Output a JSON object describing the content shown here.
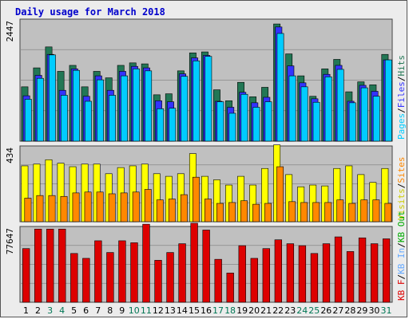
{
  "title": "Daily usage for March 2018",
  "colors": {
    "pages": "#00ccff",
    "files": "#3333ff",
    "hits": "#227755",
    "visits": "#ffff00",
    "sites": "#ff8800",
    "kbin": "#66aaff",
    "kbout": "#00aa00",
    "kbf": "#dd0000",
    "weekday": "#000000",
    "weekend": "#007755",
    "plot_bg": "#c0c0c0"
  },
  "chart_data": {
    "type": "bar",
    "categories": [
      "1",
      "2",
      "3",
      "4",
      "5",
      "6",
      "7",
      "8",
      "9",
      "10",
      "11",
      "12",
      "13",
      "14",
      "15",
      "16",
      "17",
      "18",
      "19",
      "20",
      "21",
      "22",
      "23",
      "24",
      "25",
      "26",
      "27",
      "28",
      "29",
      "30",
      "31"
    ],
    "weekend_days": [
      "3",
      "4",
      "10",
      "11",
      "17",
      "18",
      "24",
      "25",
      "31"
    ],
    "panels": [
      {
        "id": "hits-panel",
        "ymax_label": "2447",
        "ylim": [
          0,
          2447
        ],
        "legend": [
          {
            "text": "Pages",
            "color": "#00ccff"
          },
          {
            "text": "/",
            "color": "#000000"
          },
          {
            "text": "Files",
            "color": "#3333ff"
          },
          {
            "text": "/",
            "color": "#000000"
          },
          {
            "text": "Hits",
            "color": "#227755"
          }
        ],
        "series": [
          {
            "name": "Hits",
            "color": "#227755",
            "values": [
              1090,
              1470,
              1890,
              1400,
              1520,
              1090,
              1400,
              1270,
              1520,
              1570,
              1550,
              930,
              950,
              1410,
              1770,
              1790,
              1030,
              810,
              1180,
              890,
              1080,
              2350,
              1750,
              1310,
              900,
              1450,
              1640,
              990,
              1190,
              1130,
              1740
            ]
          },
          {
            "name": "Files",
            "color": "#3333ff",
            "values": [
              910,
              1320,
              1740,
              1020,
              1450,
              900,
              1310,
              1020,
              1400,
              1500,
              1470,
              810,
              790,
              1350,
              1670,
              1720,
              800,
              680,
              980,
              770,
              880,
              2290,
              1510,
              1170,
              850,
              1340,
              1520,
              800,
              1120,
              1000,
              1630
            ]
          },
          {
            "name": "Pages",
            "color": "#00ccff",
            "values": [
              840,
              1260,
              1730,
              920,
              1420,
              800,
              1230,
              920,
              1310,
              1450,
              1410,
              650,
              660,
              1300,
              1610,
              1700,
              790,
              560,
              940,
              680,
              790,
              2160,
              1310,
              1090,
              780,
              1290,
              1440,
              770,
              1070,
              900,
              1630
            ]
          }
        ]
      },
      {
        "id": "visits-panel",
        "ymax_label": "434",
        "ylim": [
          0,
          434
        ],
        "legend": [
          {
            "text": "Visits",
            "color": "#cccc00"
          },
          {
            "text": "/",
            "color": "#000000"
          },
          {
            "text": "Sites",
            "color": "#ff8800"
          }
        ],
        "series": [
          {
            "name": "Visits",
            "color": "#ffff00",
            "values": [
              320,
              330,
              355,
              335,
              315,
              330,
              330,
              275,
              310,
              320,
              330,
              275,
              260,
              275,
              390,
              260,
              240,
              210,
              260,
              210,
              305,
              440,
              270,
              200,
              210,
              205,
              305,
              320,
              270,
              225,
              305
            ]
          },
          {
            "name": "Sites",
            "color": "#ff8800",
            "values": [
              135,
              150,
              150,
              145,
              165,
              170,
              170,
              160,
              165,
              170,
              185,
              125,
              130,
              155,
              255,
              130,
              105,
              110,
              120,
              100,
              105,
              315,
              115,
              110,
              110,
              110,
              125,
              105,
              125,
              125,
              105
            ]
          }
        ]
      },
      {
        "id": "kbytes-panel",
        "ymax_label": "77647",
        "ylim": [
          0,
          77647
        ],
        "legend": [
          {
            "text": "KB F",
            "color": "#dd0000"
          },
          {
            "text": "/",
            "color": "#000000"
          },
          {
            "text": "KB In",
            "color": "#66aaff"
          },
          {
            "text": "/",
            "color": "#000000"
          },
          {
            "text": "KB Out",
            "color": "#00aa00"
          }
        ],
        "series": [
          {
            "name": "KB F",
            "color": "#dd0000",
            "values": [
              55000,
              75000,
              75000,
              75000,
              50000,
              45000,
              63000,
              51000,
              63000,
              61000,
              80000,
              43000,
              51000,
              60000,
              81000,
              74000,
              44000,
              30000,
              58000,
              45000,
              55000,
              64000,
              60000,
              58000,
              50000,
              60000,
              67000,
              52000,
              66000,
              60000,
              65000
            ]
          }
        ]
      }
    ]
  }
}
